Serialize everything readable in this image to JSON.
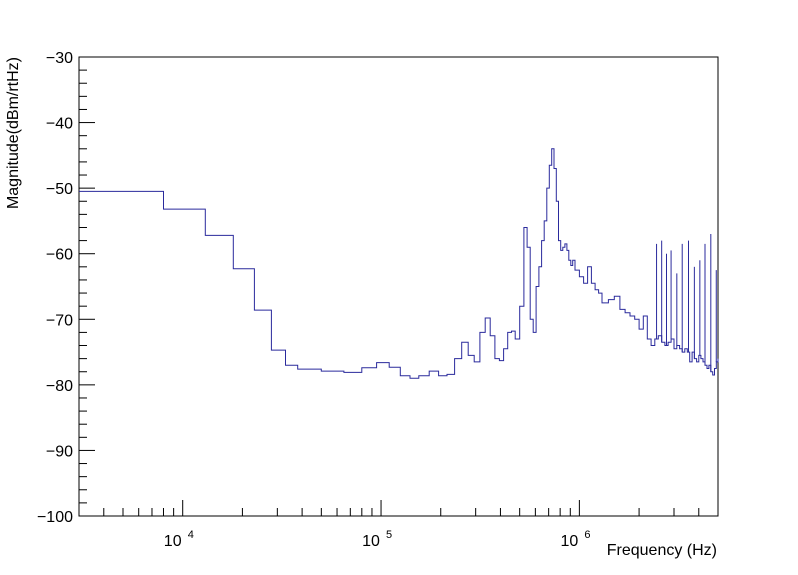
{
  "chart_data": {
    "type": "line",
    "title": "",
    "xlabel": "Frequency (Hz)",
    "ylabel": "Magnitude(dBm/rtHz)",
    "xscale": "log",
    "xlim": [
      3000,
      5000000
    ],
    "ylim": [
      -100,
      -30
    ],
    "yticks": [
      -100,
      -90,
      -80,
      -70,
      -60,
      -50,
      -40,
      -30
    ],
    "ytick_labels": [
      "−100",
      "−90",
      "−80",
      "−70",
      "−60",
      "−50",
      "−40",
      "−30"
    ],
    "xticks": [
      10000,
      100000,
      1000000
    ],
    "xtick_labels": [
      {
        "base": "10",
        "exp": "4"
      },
      {
        "base": "10",
        "exp": "5"
      },
      {
        "base": "10",
        "exp": "6"
      }
    ],
    "grid": false,
    "line_color": "#2a2a9c",
    "series": [
      {
        "step": true,
        "x": [
          3000,
          8000,
          13000,
          18000,
          23000,
          28000,
          33000,
          38000,
          50000,
          65000,
          80000,
          95000,
          110000,
          125000,
          140000,
          155000,
          175000,
          195000,
          215000,
          235000,
          255000,
          275000,
          295000,
          315000,
          335000,
          355000,
          375000,
          395000,
          415000,
          435000,
          455000,
          475000,
          500000,
          525000,
          545000,
          565000,
          585000,
          605000,
          625000,
          645000,
          665000,
          685000,
          705000,
          725000,
          745000,
          765000,
          785000,
          805000,
          825000,
          845000,
          865000,
          885000,
          905000,
          925000,
          950000,
          1000000,
          1050000,
          1100000,
          1150000,
          1200000,
          1250000,
          1300000,
          1400000,
          1500000,
          1600000,
          1700000,
          1800000,
          1900000,
          2000000,
          2100000,
          2200000,
          2300000,
          2400000,
          2500000,
          2600000,
          2700000,
          2800000,
          2900000,
          3000000,
          3100000,
          3200000,
          3300000,
          3400000,
          3500000,
          3600000,
          3700000,
          3800000,
          3900000,
          4000000,
          4100000,
          4200000,
          4300000,
          4400000,
          4500000,
          4600000,
          4700000,
          4800000,
          4900000,
          5000000
        ],
        "y": [
          -50.5,
          -53.2,
          -57.2,
          -62.3,
          -68.6,
          -74.7,
          -77.0,
          -77.6,
          -77.9,
          -78.1,
          -77.4,
          -76.6,
          -77.3,
          -78.6,
          -79.0,
          -78.6,
          -77.9,
          -78.6,
          -78.4,
          -76.0,
          -73.5,
          -75.5,
          -76.5,
          -72.0,
          -69.8,
          -72.5,
          -76.0,
          -76.3,
          -74.5,
          -72.0,
          -71.8,
          -73.0,
          -68.0,
          -56.0,
          -59.0,
          -70.0,
          -72.0,
          -65.0,
          -62.0,
          -58.0,
          -55.0,
          -50.0,
          -46.5,
          -44.0,
          -47.0,
          -52.0,
          -58.0,
          -59.5,
          -59.0,
          -58.5,
          -59.5,
          -61.0,
          -61.8,
          -61.0,
          -62.5,
          -63.5,
          -64.5,
          -62.0,
          -64.5,
          -65.5,
          -66.0,
          -67.5,
          -67.0,
          -66.5,
          -68.5,
          -69.0,
          -69.5,
          -70.0,
          -71.5,
          -69.5,
          -73.0,
          -74.0,
          -73.0,
          -72.5,
          -73.5,
          -74.0,
          -73.5,
          -73.0,
          -74.5,
          -74.0,
          -74.5,
          -75.0,
          -74.5,
          -75.0,
          -76.5,
          -75.0,
          -76.0,
          -76.5,
          -75.5,
          -76.0,
          -76.5,
          -77.0,
          -77.5,
          -77.0,
          -78.0,
          -78.5,
          -77.5,
          -76.5,
          -76.0
        ]
      }
    ],
    "spikes": [
      {
        "x": 2450000,
        "y": -58.5
      },
      {
        "x": 2600000,
        "y": -58.0
      },
      {
        "x": 2750000,
        "y": -60.0
      },
      {
        "x": 2900000,
        "y": -59.5
      },
      {
        "x": 3100000,
        "y": -63.0
      },
      {
        "x": 3300000,
        "y": -58.5
      },
      {
        "x": 3550000,
        "y": -58.0
      },
      {
        "x": 3800000,
        "y": -62.0
      },
      {
        "x": 4050000,
        "y": -61.0
      },
      {
        "x": 4300000,
        "y": -58.5
      },
      {
        "x": 4600000,
        "y": -57.0
      },
      {
        "x": 4900000,
        "y": -62.5
      }
    ]
  }
}
